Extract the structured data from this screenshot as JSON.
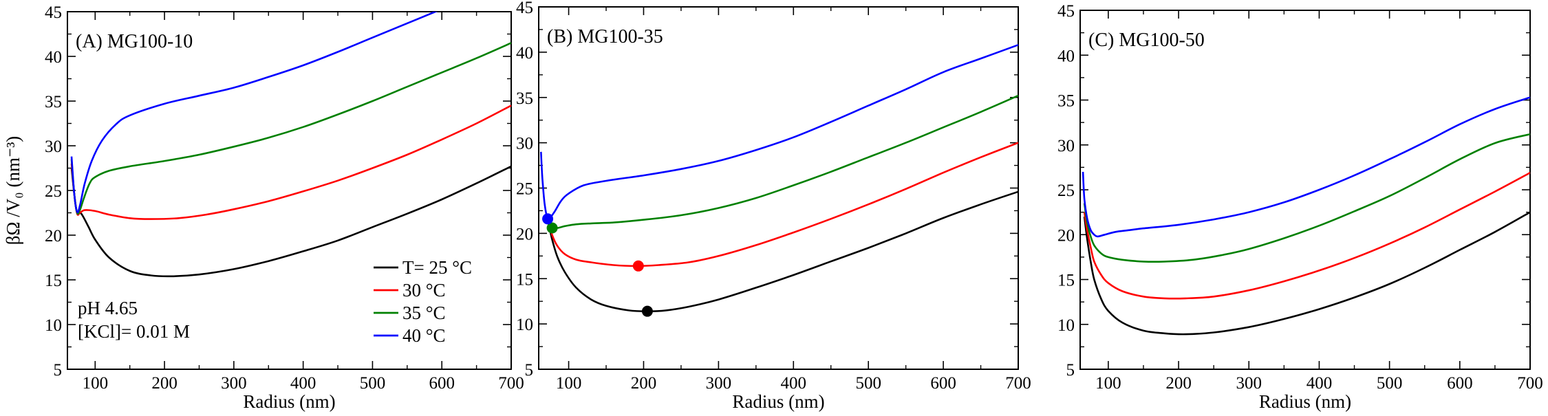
{
  "chart_data": [
    {
      "type": "line",
      "panel_label": "(A) MG100-10",
      "xlabel": "Radius (nm)",
      "ylabel": "βΩ /V₀ (nm⁻³)",
      "xlim": [
        60,
        700
      ],
      "ylim": [
        5,
        45
      ],
      "xticks": [
        100,
        200,
        300,
        400,
        500,
        600,
        700
      ],
      "yticks": [
        5,
        10,
        15,
        20,
        25,
        30,
        35,
        40,
        45
      ],
      "legend": {
        "placement": "lower-right",
        "entries": [
          "T= 25 °C",
          "30 °C",
          "35 °C",
          "40 °C"
        ]
      },
      "conditions": [
        "pH 4.65",
        "[KCl]= 0.01 M"
      ],
      "series": [
        {
          "name": "T= 25 °C",
          "color": "#000000",
          "x": [
            66,
            70,
            74,
            80,
            90,
            100,
            120,
            150,
            180,
            210,
            250,
            300,
            350,
            400,
            450,
            500,
            550,
            600,
            650,
            700
          ],
          "y": [
            27.5,
            24.5,
            22.5,
            22.4,
            21.0,
            19.5,
            17.5,
            16.0,
            15.5,
            15.4,
            15.6,
            16.2,
            17.1,
            18.2,
            19.4,
            20.9,
            22.4,
            24.0,
            25.8,
            27.7
          ]
        },
        {
          "name": "30 °C",
          "color": "#ff0000",
          "x": [
            66,
            70,
            74,
            78,
            85,
            100,
            120,
            150,
            180,
            220,
            260,
            300,
            350,
            400,
            450,
            500,
            550,
            600,
            650,
            700
          ],
          "y": [
            28.0,
            24.5,
            22.4,
            22.5,
            22.8,
            22.7,
            22.3,
            21.9,
            21.8,
            21.9,
            22.3,
            22.9,
            23.8,
            24.9,
            26.1,
            27.5,
            29.0,
            30.7,
            32.5,
            34.5
          ]
        },
        {
          "name": "35 °C",
          "color": "#008000",
          "x": [
            66,
            70,
            74,
            78,
            84,
            92,
            100,
            120,
            150,
            200,
            250,
            300,
            350,
            400,
            450,
            500,
            550,
            600,
            650,
            700
          ],
          "y": [
            28.5,
            24.5,
            22.5,
            22.8,
            24.2,
            25.8,
            26.5,
            27.2,
            27.7,
            28.3,
            29.0,
            29.9,
            30.9,
            32.1,
            33.5,
            35.0,
            36.6,
            38.2,
            39.8,
            41.5
          ]
        },
        {
          "name": "40 °C",
          "color": "#0000ff",
          "x": [
            66,
            70,
            74,
            78,
            85,
            95,
            110,
            130,
            150,
            200,
            250,
            300,
            350,
            400,
            450,
            500,
            550,
            600,
            620
          ],
          "y": [
            28.8,
            24.5,
            22.6,
            23.3,
            25.8,
            28.3,
            30.6,
            32.4,
            33.4,
            34.7,
            35.6,
            36.5,
            37.7,
            39.0,
            40.5,
            42.1,
            43.7,
            45.3,
            46.0
          ]
        }
      ]
    },
    {
      "type": "line",
      "panel_label": "(B) MG100-35",
      "xlabel": "Radius (nm)",
      "ylabel": "",
      "xlim": [
        60,
        700
      ],
      "ylim": [
        5,
        45
      ],
      "xticks": [
        100,
        200,
        300,
        400,
        500,
        600,
        700
      ],
      "yticks": [
        5,
        10,
        15,
        20,
        25,
        30,
        35,
        40,
        45
      ],
      "series": [
        {
          "color": "#000000",
          "x": [
            72,
            78,
            85,
            95,
            110,
            130,
            150,
            180,
            205,
            230,
            260,
            300,
            350,
            400,
            450,
            500,
            550,
            600,
            650,
            700
          ],
          "y": [
            21.5,
            19.3,
            17.4,
            15.7,
            14.0,
            12.7,
            12.0,
            11.5,
            11.4,
            11.5,
            11.9,
            12.7,
            14.0,
            15.4,
            16.9,
            18.4,
            20.0,
            21.7,
            23.2,
            24.6
          ],
          "minimum": {
            "x": 205,
            "y": 11.4
          }
        },
        {
          "color": "#ff0000",
          "x": [
            72,
            78,
            85,
            95,
            110,
            130,
            160,
            190,
            220,
            260,
            300,
            350,
            400,
            450,
            500,
            550,
            600,
            650,
            700
          ],
          "y": [
            21.5,
            19.8,
            18.6,
            17.7,
            17.1,
            16.8,
            16.5,
            16.4,
            16.5,
            16.8,
            17.5,
            18.7,
            20.1,
            21.6,
            23.2,
            24.9,
            26.7,
            28.4,
            30.0
          ],
          "minimum": {
            "x": 193,
            "y": 16.4
          }
        },
        {
          "color": "#008000",
          "x": [
            72,
            78,
            85,
            95,
            110,
            130,
            160,
            200,
            250,
            300,
            350,
            400,
            450,
            500,
            550,
            600,
            650,
            700
          ],
          "y": [
            21.5,
            20.7,
            20.6,
            20.8,
            21.0,
            21.1,
            21.2,
            21.5,
            22.0,
            22.8,
            23.9,
            25.3,
            26.8,
            28.4,
            30.0,
            31.7,
            33.4,
            35.2
          ],
          "minimum": {
            "x": 78,
            "y": 20.6
          }
        },
        {
          "color": "#0000ff",
          "x": [
            63,
            65,
            68,
            72,
            76,
            82,
            90,
            100,
            120,
            150,
            200,
            250,
            300,
            350,
            400,
            450,
            500,
            550,
            600,
            650,
            700
          ],
          "y": [
            29.0,
            26.0,
            23.2,
            21.6,
            21.8,
            22.5,
            23.6,
            24.4,
            25.3,
            25.8,
            26.4,
            27.1,
            28.0,
            29.2,
            30.6,
            32.3,
            34.1,
            35.9,
            37.8,
            39.3,
            40.8
          ],
          "minimum": {
            "x": 72,
            "y": 21.6
          }
        }
      ]
    },
    {
      "type": "line",
      "panel_label": "(C) MG100-50",
      "xlabel": "Radius (nm)",
      "ylabel": "",
      "xlim": [
        60,
        700
      ],
      "ylim": [
        5,
        45
      ],
      "xticks": [
        100,
        200,
        300,
        400,
        500,
        600,
        700
      ],
      "yticks": [
        5,
        10,
        15,
        20,
        25,
        30,
        35,
        40,
        45
      ],
      "series": [
        {
          "color": "#000000",
          "x": [
            66,
            70,
            75,
            80,
            90,
            100,
            120,
            150,
            180,
            210,
            250,
            300,
            350,
            400,
            450,
            500,
            550,
            600,
            650,
            700
          ],
          "y": [
            22.0,
            19.5,
            17.0,
            15.0,
            12.8,
            11.5,
            10.2,
            9.3,
            9.0,
            8.9,
            9.1,
            9.7,
            10.6,
            11.7,
            13.0,
            14.5,
            16.3,
            18.3,
            20.3,
            22.5
          ]
        },
        {
          "color": "#ff0000",
          "x": [
            66,
            70,
            75,
            80,
            90,
            100,
            120,
            150,
            180,
            210,
            250,
            300,
            350,
            400,
            450,
            500,
            550,
            600,
            650,
            700
          ],
          "y": [
            22.5,
            20.5,
            18.6,
            17.0,
            15.5,
            14.6,
            13.7,
            13.1,
            12.9,
            12.9,
            13.1,
            13.8,
            14.8,
            16.0,
            17.4,
            19.0,
            20.8,
            22.8,
            24.8,
            26.9
          ]
        },
        {
          "color": "#008000",
          "x": [
            66,
            70,
            75,
            80,
            90,
            100,
            120,
            150,
            180,
            220,
            260,
            300,
            350,
            400,
            450,
            500,
            550,
            600,
            650,
            700
          ],
          "y": [
            23.5,
            21.3,
            19.8,
            18.8,
            17.9,
            17.5,
            17.2,
            17.0,
            17.0,
            17.2,
            17.7,
            18.4,
            19.6,
            21.0,
            22.6,
            24.3,
            26.3,
            28.4,
            30.2,
            31.2
          ]
        },
        {
          "color": "#0000ff",
          "x": [
            64,
            66,
            70,
            75,
            80,
            85,
            95,
            110,
            130,
            150,
            200,
            250,
            300,
            350,
            400,
            450,
            500,
            550,
            600,
            650,
            700
          ],
          "y": [
            27.0,
            24.0,
            21.8,
            20.5,
            20.0,
            19.8,
            20.0,
            20.3,
            20.5,
            20.7,
            21.1,
            21.7,
            22.5,
            23.6,
            25.0,
            26.6,
            28.4,
            30.3,
            32.3,
            34.0,
            35.3
          ]
        }
      ]
    }
  ]
}
